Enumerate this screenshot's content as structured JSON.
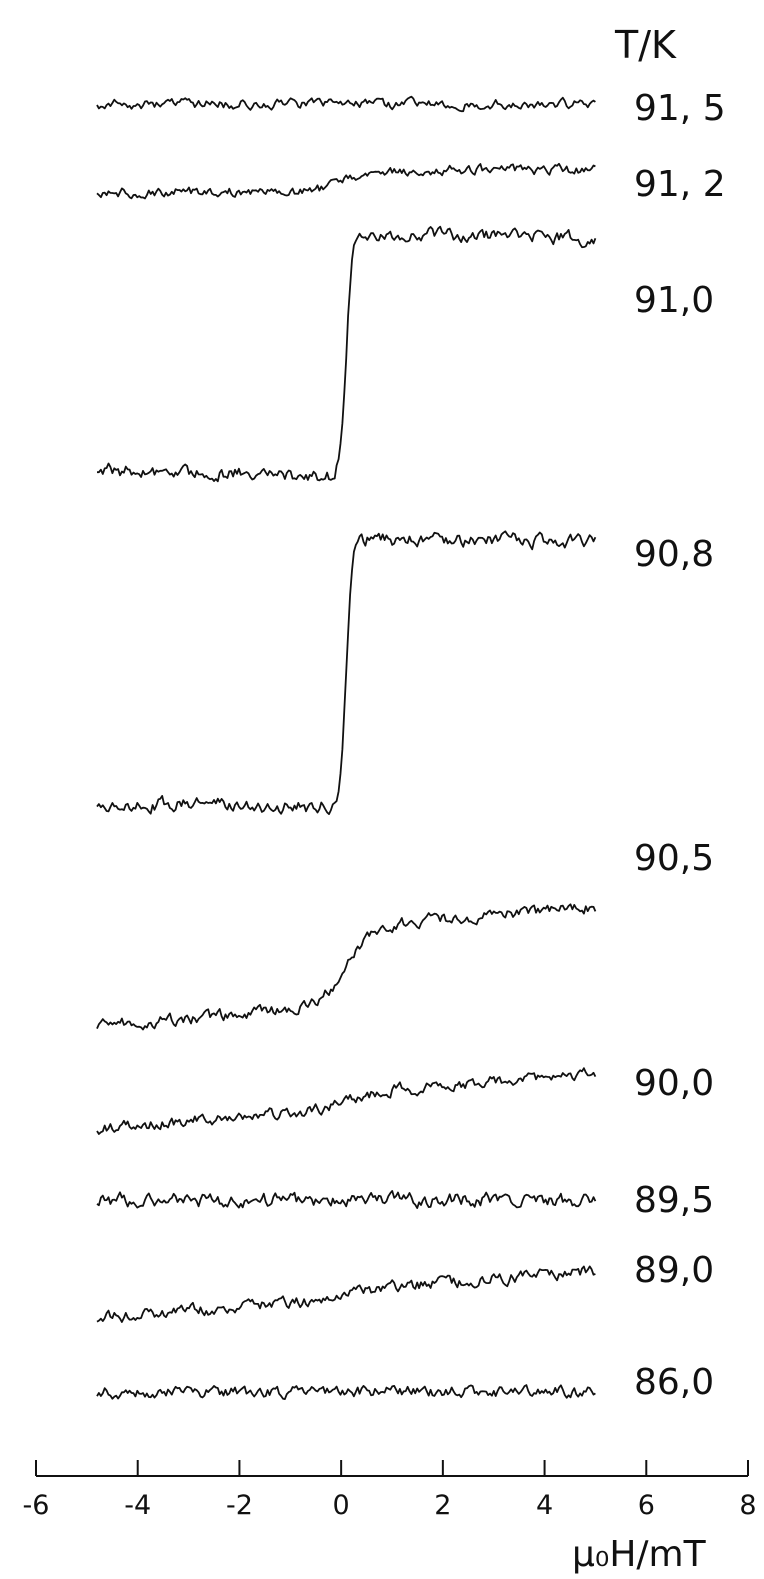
{
  "chart_data": {
    "type": "line",
    "title": "",
    "legend_title": "T/K",
    "xlabel": "μ₀H/mT",
    "xlim": [
      -6,
      8
    ],
    "xticks": [
      -6,
      -4,
      -2,
      0,
      2,
      4,
      6,
      8
    ],
    "xtick_labels": [
      "-6",
      "-4",
      "-2",
      "0",
      "2",
      "4",
      "6",
      "8"
    ],
    "grid": false,
    "series": [
      {
        "name": "91.5",
        "label": "91, 5",
        "step": 0.0,
        "slope": 0.0,
        "noise": 5
      },
      {
        "name": "91.2",
        "label": "91, 2",
        "step": 22,
        "slope": 0.0,
        "noise": 5
      },
      {
        "name": "91.0",
        "label": "91,0",
        "step": 245,
        "slope": -0.35,
        "noise": 7
      },
      {
        "name": "90.8",
        "label": "90,8",
        "step": 268,
        "slope": -0.15,
        "noise": 7
      },
      {
        "name": "90.5",
        "label": "90,5",
        "step": 80,
        "slope": 1.0,
        "noise": 6
      },
      {
        "name": "90.0",
        "label": "90,0",
        "step": 15,
        "slope": 1.0,
        "noise": 6
      },
      {
        "name": "89.5",
        "label": "89,5",
        "step": 0.0,
        "slope": 0.0,
        "noise": 7
      },
      {
        "name": "89.0",
        "label": "89,0",
        "step": 8,
        "slope": 1.0,
        "noise": 6
      },
      {
        "name": "86.0",
        "label": "86,0",
        "step": 0.0,
        "slope": 0.0,
        "noise": 6
      }
    ]
  }
}
